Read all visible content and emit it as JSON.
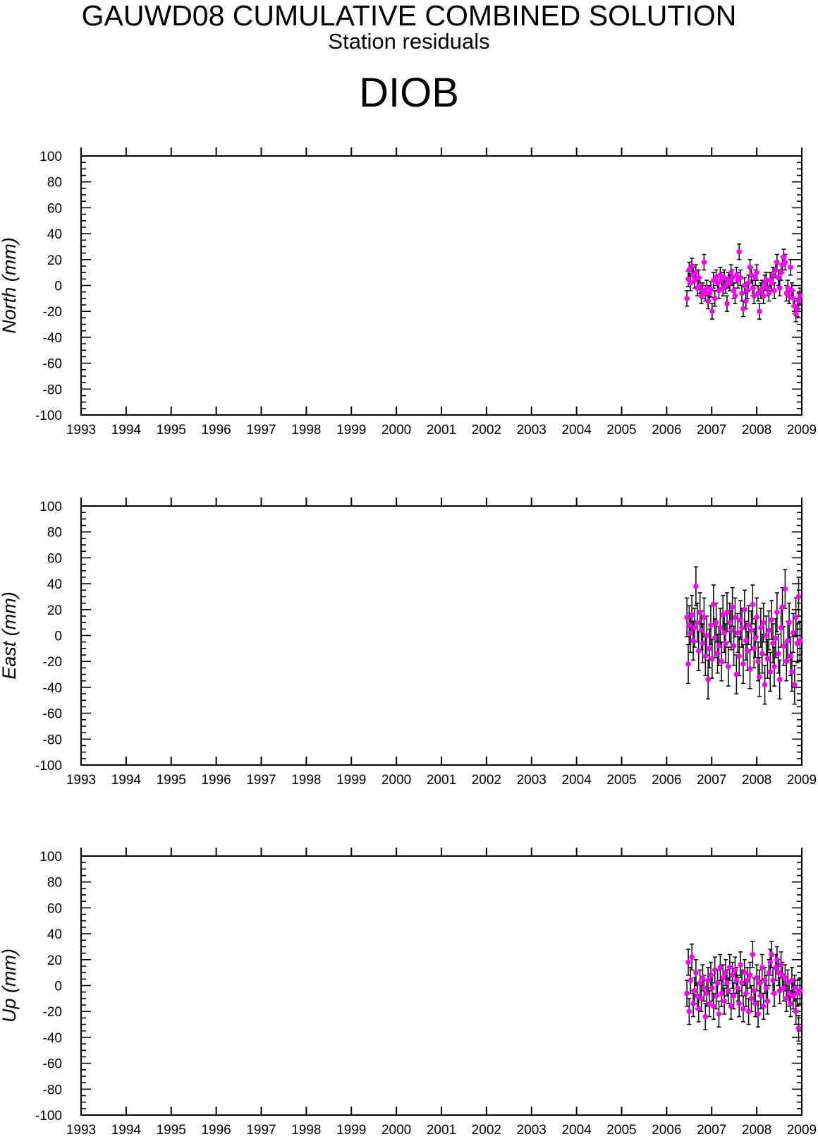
{
  "header": {
    "title": "GAUWD08 CUMULATIVE COMBINED SOLUTION",
    "subtitle": "Station residuals",
    "station": "DIOB"
  },
  "colors": {
    "marker": "#ff00ff",
    "errorbar": "#000000",
    "axis": "#000000"
  },
  "chart_data": [
    {
      "type": "scatter",
      "panel": "north",
      "ylabel": "North (mm)",
      "xlim": [
        1993,
        2009
      ],
      "ylim": [
        -100,
        100
      ],
      "xticks": [
        1993,
        1994,
        1995,
        1996,
        1997,
        1998,
        1999,
        2000,
        2001,
        2002,
        2003,
        2004,
        2005,
        2006,
        2007,
        2008,
        2009
      ],
      "yticks": [
        -100,
        -80,
        -60,
        -40,
        -20,
        0,
        20,
        40,
        60,
        80,
        100
      ],
      "grid": false,
      "legend": "none",
      "x": [
        2006.45,
        2006.48,
        2006.5,
        2006.53,
        2006.56,
        2006.59,
        2006.62,
        2006.65,
        2006.68,
        2006.71,
        2006.74,
        2006.77,
        2006.8,
        2006.83,
        2006.86,
        2006.89,
        2006.92,
        2006.95,
        2006.98,
        2007.01,
        2007.04,
        2007.07,
        2007.1,
        2007.13,
        2007.16,
        2007.19,
        2007.22,
        2007.25,
        2007.28,
        2007.31,
        2007.34,
        2007.37,
        2007.4,
        2007.43,
        2007.46,
        2007.49,
        2007.52,
        2007.55,
        2007.58,
        2007.61,
        2007.64,
        2007.67,
        2007.7,
        2007.73,
        2007.76,
        2007.79,
        2007.82,
        2007.85,
        2007.88,
        2007.91,
        2007.94,
        2007.97,
        2008.0,
        2008.03,
        2008.06,
        2008.09,
        2008.12,
        2008.15,
        2008.18,
        2008.21,
        2008.24,
        2008.27,
        2008.3,
        2008.33,
        2008.36,
        2008.39,
        2008.42,
        2008.45,
        2008.48,
        2008.51,
        2008.54,
        2008.57,
        2008.6,
        2008.63,
        2008.66,
        2008.69,
        2008.72,
        2008.75,
        2008.78,
        2008.81,
        2008.84,
        2008.87,
        2008.9,
        2008.93,
        2008.96
      ],
      "y": [
        -10,
        5,
        12,
        2,
        15,
        8,
        4,
        10,
        -2,
        6,
        0,
        -8,
        -4,
        18,
        -6,
        -2,
        -12,
        -6,
        -3,
        -20,
        4,
        -10,
        6,
        2,
        -4,
        8,
        4,
        -2,
        6,
        0,
        -14,
        4,
        2,
        10,
        6,
        -4,
        -8,
        8,
        4,
        26,
        6,
        -6,
        -18,
        0,
        -12,
        -4,
        2,
        14,
        8,
        -2,
        -8,
        6,
        10,
        -6,
        -20,
        -4,
        -2,
        -8,
        2,
        4,
        -2,
        -6,
        4,
        2,
        8,
        -4,
        12,
        18,
        6,
        -2,
        10,
        16,
        22,
        18,
        -6,
        -2,
        -8,
        14,
        -4,
        -10,
        -16,
        -22,
        -18,
        -12,
        -8
      ],
      "y_error": [
        6,
        6,
        6,
        6,
        6,
        6,
        6,
        6,
        6,
        6,
        6,
        6,
        6,
        6,
        6,
        6,
        6,
        6,
        6,
        6,
        6,
        6,
        6,
        6,
        6,
        6,
        6,
        6,
        6,
        6,
        6,
        6,
        6,
        6,
        6,
        6,
        6,
        6,
        6,
        6,
        6,
        6,
        6,
        6,
        6,
        6,
        6,
        6,
        6,
        6,
        6,
        6,
        6,
        6,
        6,
        6,
        6,
        6,
        6,
        6,
        6,
        6,
        6,
        6,
        6,
        6,
        6,
        6,
        6,
        6,
        6,
        6,
        6,
        6,
        6,
        6,
        6,
        6,
        6,
        6,
        6,
        6,
        6,
        6,
        6
      ]
    },
    {
      "type": "scatter",
      "panel": "east",
      "ylabel": "East (mm)",
      "xlim": [
        1993,
        2009
      ],
      "ylim": [
        -100,
        100
      ],
      "xticks": [
        1993,
        1994,
        1995,
        1996,
        1997,
        1998,
        1999,
        2000,
        2001,
        2002,
        2003,
        2004,
        2005,
        2006,
        2007,
        2008,
        2009
      ],
      "yticks": [
        -100,
        -80,
        -60,
        -40,
        -20,
        0,
        20,
        40,
        60,
        80,
        100
      ],
      "grid": false,
      "legend": "none",
      "x": [
        2006.45,
        2006.48,
        2006.5,
        2006.53,
        2006.56,
        2006.59,
        2006.62,
        2006.65,
        2006.68,
        2006.71,
        2006.74,
        2006.77,
        2006.8,
        2006.83,
        2006.86,
        2006.89,
        2006.92,
        2006.95,
        2006.98,
        2007.01,
        2007.04,
        2007.07,
        2007.1,
        2007.13,
        2007.16,
        2007.19,
        2007.22,
        2007.25,
        2007.28,
        2007.31,
        2007.34,
        2007.37,
        2007.4,
        2007.43,
        2007.46,
        2007.49,
        2007.52,
        2007.55,
        2007.58,
        2007.61,
        2007.64,
        2007.67,
        2007.7,
        2007.73,
        2007.76,
        2007.79,
        2007.82,
        2007.85,
        2007.88,
        2007.91,
        2007.94,
        2007.97,
        2008.0,
        2008.03,
        2008.06,
        2008.09,
        2008.12,
        2008.15,
        2008.18,
        2008.21,
        2008.24,
        2008.27,
        2008.3,
        2008.33,
        2008.36,
        2008.39,
        2008.42,
        2008.45,
        2008.48,
        2008.51,
        2008.54,
        2008.57,
        2008.6,
        2008.63,
        2008.66,
        2008.69,
        2008.72,
        2008.75,
        2008.78,
        2008.81,
        2008.84,
        2008.87,
        2008.9,
        2008.93,
        2008.96
      ],
      "y": [
        14,
        -22,
        8,
        2,
        16,
        -4,
        6,
        38,
        10,
        -12,
        18,
        4,
        -6,
        14,
        -16,
        0,
        -34,
        -10,
        8,
        -18,
        24,
        -2,
        10,
        -14,
        -8,
        6,
        -20,
        16,
        2,
        -6,
        18,
        -24,
        10,
        4,
        22,
        -8,
        14,
        -30,
        2,
        -16,
        12,
        6,
        -22,
        20,
        -4,
        -12,
        8,
        -26,
        4,
        24,
        -10,
        -2,
        14,
        -20,
        -32,
        6,
        -14,
        10,
        -38,
        0,
        -18,
        4,
        -28,
        12,
        -6,
        -24,
        -2,
        18,
        -14,
        -34,
        6,
        22,
        -8,
        36,
        -20,
        -4,
        10,
        -16,
        -28,
        2,
        -38,
        14,
        -6,
        30,
        -4
      ],
      "y_error": [
        15,
        15,
        15,
        15,
        15,
        15,
        15,
        15,
        15,
        15,
        15,
        15,
        15,
        15,
        15,
        15,
        15,
        15,
        15,
        15,
        15,
        15,
        15,
        15,
        15,
        15,
        15,
        15,
        15,
        15,
        15,
        15,
        15,
        15,
        15,
        15,
        15,
        15,
        15,
        15,
        15,
        15,
        15,
        15,
        15,
        15,
        15,
        15,
        15,
        15,
        15,
        15,
        15,
        15,
        15,
        15,
        15,
        15,
        15,
        15,
        15,
        15,
        15,
        15,
        15,
        15,
        15,
        15,
        15,
        15,
        15,
        15,
        15,
        15,
        15,
        15,
        15,
        15,
        15,
        15,
        15,
        15,
        15,
        15,
        15
      ]
    },
    {
      "type": "scatter",
      "panel": "up",
      "ylabel": "Up (mm)",
      "xlim": [
        1993,
        2009
      ],
      "ylim": [
        -100,
        100
      ],
      "xticks": [
        1993,
        1994,
        1995,
        1996,
        1997,
        1998,
        1999,
        2000,
        2001,
        2002,
        2003,
        2004,
        2005,
        2006,
        2007,
        2008,
        2009
      ],
      "yticks": [
        -100,
        -80,
        -60,
        -40,
        -20,
        0,
        20,
        40,
        60,
        80,
        100
      ],
      "grid": false,
      "legend": "none",
      "x": [
        2006.45,
        2006.48,
        2006.5,
        2006.53,
        2006.56,
        2006.59,
        2006.62,
        2006.65,
        2006.68,
        2006.71,
        2006.74,
        2006.77,
        2006.8,
        2006.83,
        2006.86,
        2006.89,
        2006.92,
        2006.95,
        2006.98,
        2007.01,
        2007.04,
        2007.07,
        2007.1,
        2007.13,
        2007.16,
        2007.19,
        2007.22,
        2007.25,
        2007.28,
        2007.31,
        2007.34,
        2007.37,
        2007.4,
        2007.43,
        2007.46,
        2007.49,
        2007.52,
        2007.55,
        2007.58,
        2007.61,
        2007.64,
        2007.67,
        2007.7,
        2007.73,
        2007.76,
        2007.79,
        2007.82,
        2007.85,
        2007.88,
        2007.91,
        2007.94,
        2007.97,
        2008.0,
        2008.03,
        2008.06,
        2008.09,
        2008.12,
        2008.15,
        2008.18,
        2008.21,
        2008.24,
        2008.27,
        2008.3,
        2008.33,
        2008.36,
        2008.39,
        2008.42,
        2008.45,
        2008.48,
        2008.51,
        2008.54,
        2008.57,
        2008.6,
        2008.63,
        2008.66,
        2008.69,
        2008.72,
        2008.75,
        2008.78,
        2008.81,
        2008.84,
        2008.87,
        2008.9,
        2008.93,
        2008.96
      ],
      "y": [
        -6,
        18,
        -20,
        4,
        22,
        -14,
        -4,
        10,
        -8,
        -18,
        2,
        -10,
        6,
        -2,
        -24,
        -6,
        4,
        -14,
        8,
        -2,
        -16,
        12,
        -8,
        2,
        -22,
        14,
        -6,
        6,
        -12,
        10,
        2,
        -4,
        14,
        -16,
        8,
        -8,
        12,
        4,
        -2,
        -14,
        16,
        2,
        -18,
        10,
        -6,
        4,
        -20,
        8,
        -10,
        24,
        -4,
        -14,
        6,
        -22,
        2,
        -8,
        14,
        -16,
        4,
        -2,
        -12,
        10,
        18,
        24,
        4,
        -6,
        14,
        20,
        10,
        -4,
        16,
        8,
        -2,
        6,
        -10,
        2,
        -6,
        -14,
        4,
        -8,
        -2,
        -20,
        -6,
        -33,
        -4
      ],
      "y_error": [
        10,
        10,
        10,
        10,
        10,
        10,
        10,
        10,
        10,
        10,
        10,
        10,
        10,
        10,
        10,
        10,
        10,
        10,
        10,
        10,
        10,
        10,
        10,
        10,
        10,
        10,
        10,
        10,
        10,
        10,
        10,
        10,
        10,
        10,
        10,
        10,
        10,
        10,
        10,
        10,
        10,
        10,
        10,
        10,
        10,
        10,
        10,
        10,
        10,
        10,
        10,
        10,
        10,
        10,
        10,
        10,
        10,
        10,
        10,
        10,
        10,
        10,
        10,
        10,
        10,
        10,
        10,
        10,
        10,
        10,
        10,
        10,
        10,
        10,
        10,
        10,
        10,
        10,
        10,
        10,
        10,
        10,
        10,
        10,
        10
      ]
    }
  ]
}
